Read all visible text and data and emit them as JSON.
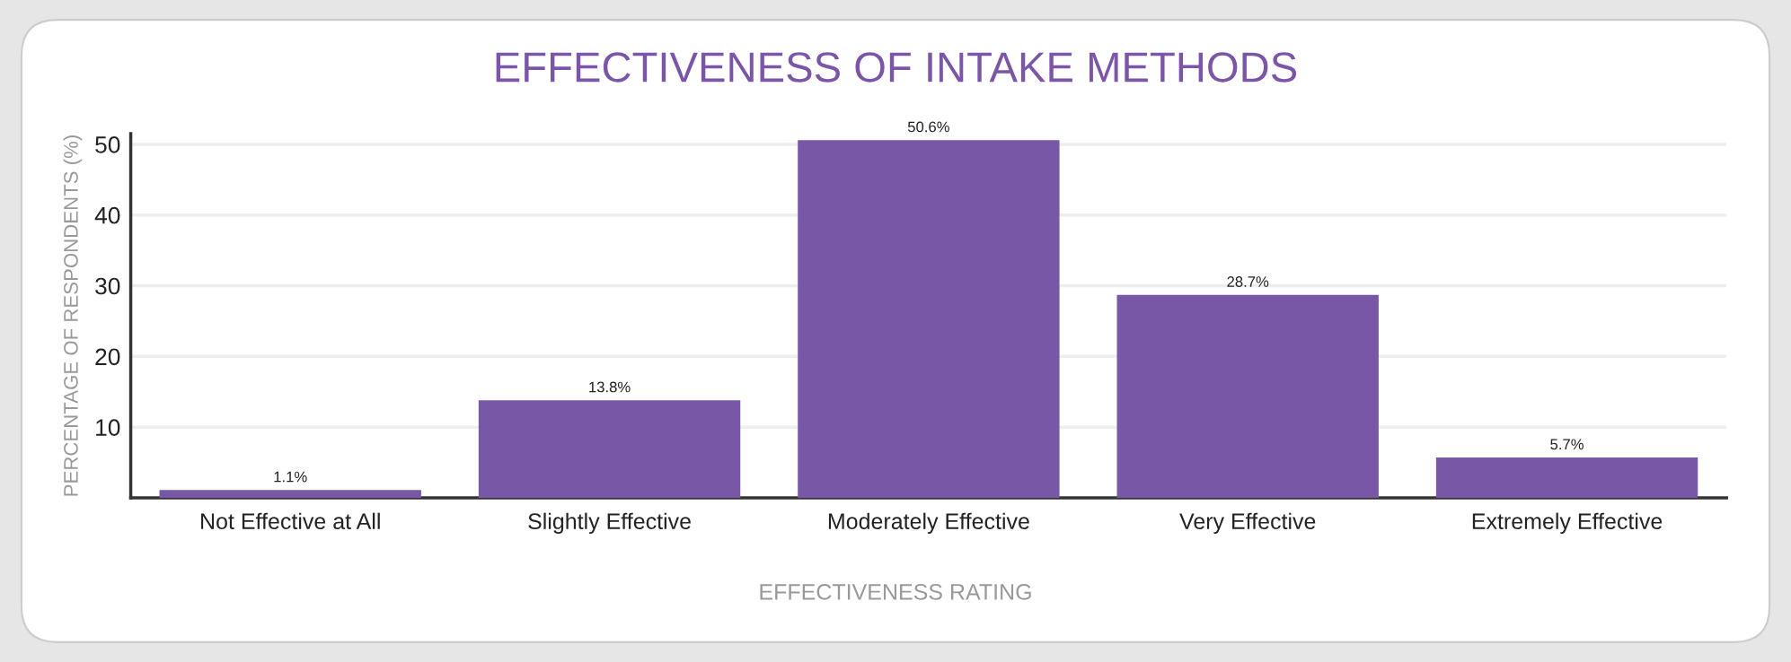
{
  "chart_data": {
    "type": "bar",
    "title": "EFFECTIVENESS OF INTAKE METHODS",
    "xlabel": "EFFECTIVENESS RATING",
    "ylabel": "PERCENTAGE OF RESPONDENTS (%)",
    "categories": [
      "Not Effective at All",
      "Slightly Effective",
      "Moderately Effective",
      "Very Effective",
      "Extremely Effective"
    ],
    "values": [
      1.1,
      13.8,
      50.6,
      28.7,
      5.7
    ],
    "value_labels": [
      "1.1%",
      "13.8%",
      "50.6%",
      "28.7%",
      "5.7%"
    ],
    "color": "#7858a6",
    "ylim": [
      0,
      51.5
    ],
    "yticks": [
      10,
      20,
      30,
      40,
      50
    ],
    "grid": "y",
    "legend": false
  }
}
